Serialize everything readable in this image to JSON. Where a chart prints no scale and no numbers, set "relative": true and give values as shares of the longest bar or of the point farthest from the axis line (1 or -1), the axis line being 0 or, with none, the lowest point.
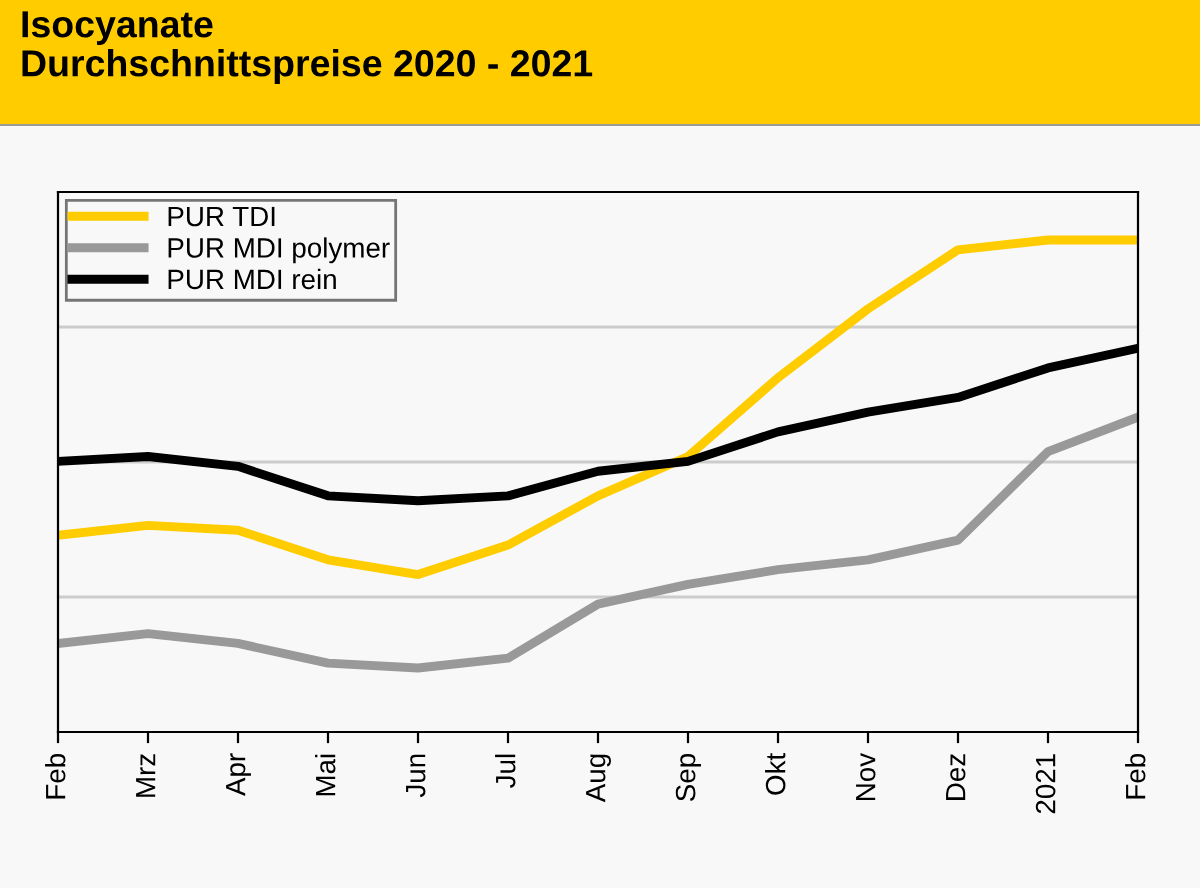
{
  "chart_data": {
    "type": "line",
    "title": "Isocyanate\nDurchschnittspreise 2020 - 2021",
    "relative": true,
    "grid": "y",
    "legend": "top left",
    "categories": [
      "Feb",
      "Mrz",
      "Apr",
      "Mai",
      "Jun",
      "Jul",
      "Aug",
      "Sep",
      "Okt",
      "Nov",
      "Dez",
      "2021",
      "Feb"
    ],
    "series": [
      {
        "name": "PUR TDI",
        "color": "#ffcc00",
        "values": [
          0.4,
          0.42,
          0.41,
          0.35,
          0.32,
          0.38,
          0.48,
          0.56,
          0.72,
          0.86,
          0.98,
          1.0,
          1.0
        ]
      },
      {
        "name": "PUR MDI polymer",
        "color": "#999999",
        "values": [
          0.18,
          0.2,
          0.18,
          0.14,
          0.13,
          0.15,
          0.26,
          0.3,
          0.33,
          0.35,
          0.39,
          0.57,
          0.64
        ]
      },
      {
        "name": "PUR MDI rein",
        "color": "#000000",
        "values": [
          0.55,
          0.56,
          0.54,
          0.48,
          0.47,
          0.48,
          0.53,
          0.55,
          0.61,
          0.65,
          0.68,
          0.74,
          0.78
        ]
      }
    ]
  }
}
